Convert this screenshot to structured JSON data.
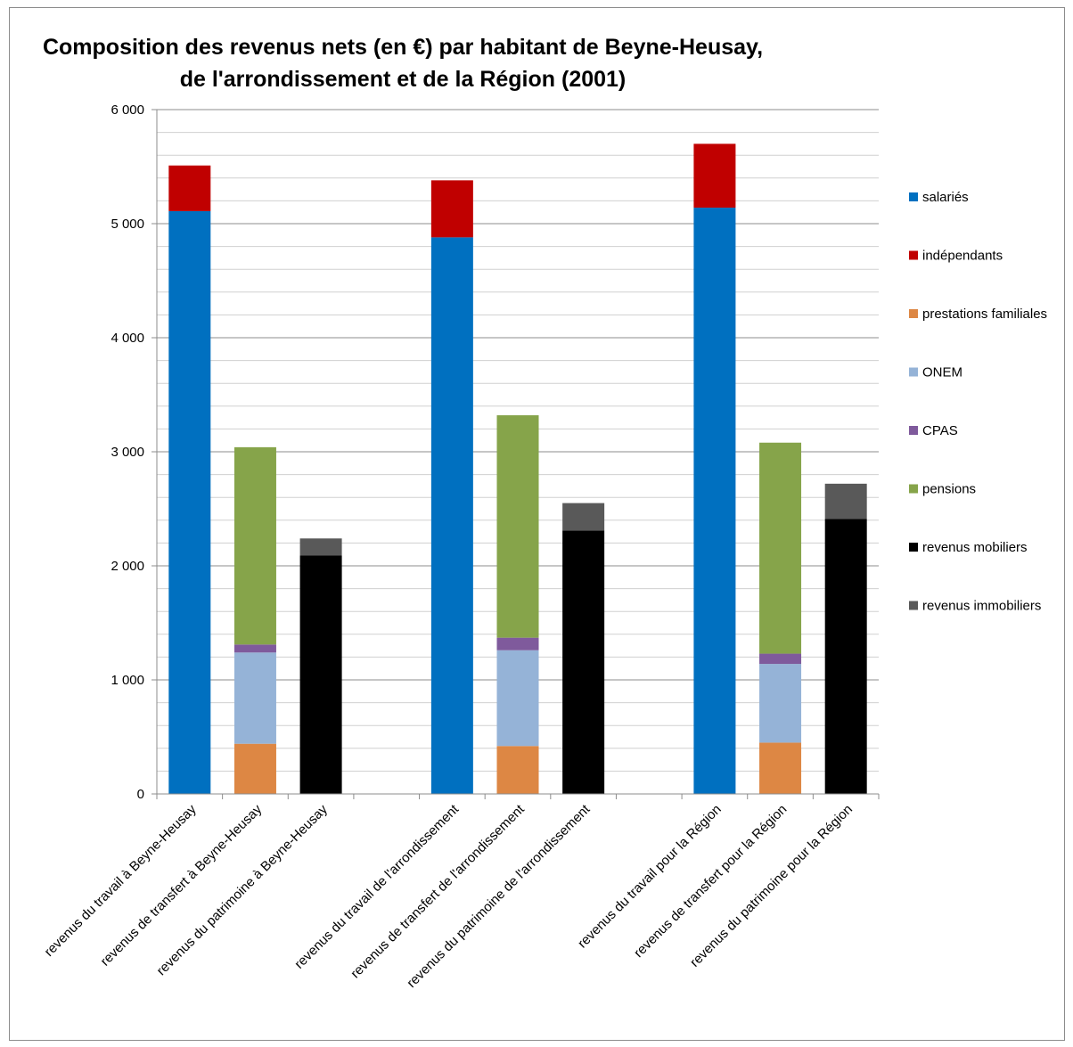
{
  "chart_data": {
    "type": "bar",
    "stacked": true,
    "title": "Composition des revenus nets (en €) par habitant de Beyne-Heusay,",
    "subtitle": "de l'arrondissement et de la Région (2001)",
    "xlabel": "",
    "ylabel": "",
    "ylim": [
      0,
      6000
    ],
    "yticks": [
      0,
      1000,
      2000,
      3000,
      4000,
      5000,
      6000
    ],
    "ytick_labels": [
      "0",
      "1 000",
      "2 000",
      "3 000",
      "4 000",
      "5 000",
      "6 000"
    ],
    "grid": true,
    "legend_position": "right",
    "categories": [
      "revenus du travail à Beyne-Heusay",
      "revenus de transfert à Beyne-Heusay",
      "revenus du patrimoine à Beyne-Heusay",
      "",
      "revenus du travail de l'arrondissement",
      "revenus de transfert de l'arrondissement",
      "revenus du patrimoine de l'arrondissement",
      "",
      "revenus du travail pour la Région",
      "revenus de transfert pour la Région",
      "revenus du patrimoine pour la Région"
    ],
    "series": [
      {
        "name": "salariés",
        "color": "#0070c0",
        "values": [
          5110,
          0,
          0,
          0,
          4880,
          0,
          0,
          0,
          5140,
          0,
          0
        ]
      },
      {
        "name": "indépendants",
        "color": "#c00000",
        "values": [
          400,
          0,
          0,
          0,
          500,
          0,
          0,
          0,
          560,
          0,
          0
        ]
      },
      {
        "name": "prestations familiales",
        "color": "#dd8744",
        "values": [
          0,
          440,
          0,
          0,
          0,
          420,
          0,
          0,
          0,
          450,
          0
        ]
      },
      {
        "name": "ONEM",
        "color": "#95b3d7",
        "values": [
          0,
          800,
          0,
          0,
          0,
          840,
          0,
          0,
          0,
          690,
          0
        ]
      },
      {
        "name": "CPAS",
        "color": "#7f5a9c",
        "values": [
          0,
          70,
          0,
          0,
          0,
          110,
          0,
          0,
          0,
          90,
          0
        ]
      },
      {
        "name": "pensions",
        "color": "#86a44a",
        "values": [
          0,
          1730,
          0,
          0,
          0,
          1950,
          0,
          0,
          0,
          1850,
          0
        ]
      },
      {
        "name": "revenus mobiliers",
        "color": "#000000",
        "values": [
          0,
          0,
          2090,
          0,
          0,
          0,
          2310,
          0,
          0,
          0,
          2410
        ]
      },
      {
        "name": "revenus immobiliers",
        "color": "#595959",
        "values": [
          0,
          0,
          150,
          0,
          0,
          0,
          240,
          0,
          0,
          0,
          310
        ]
      }
    ]
  }
}
